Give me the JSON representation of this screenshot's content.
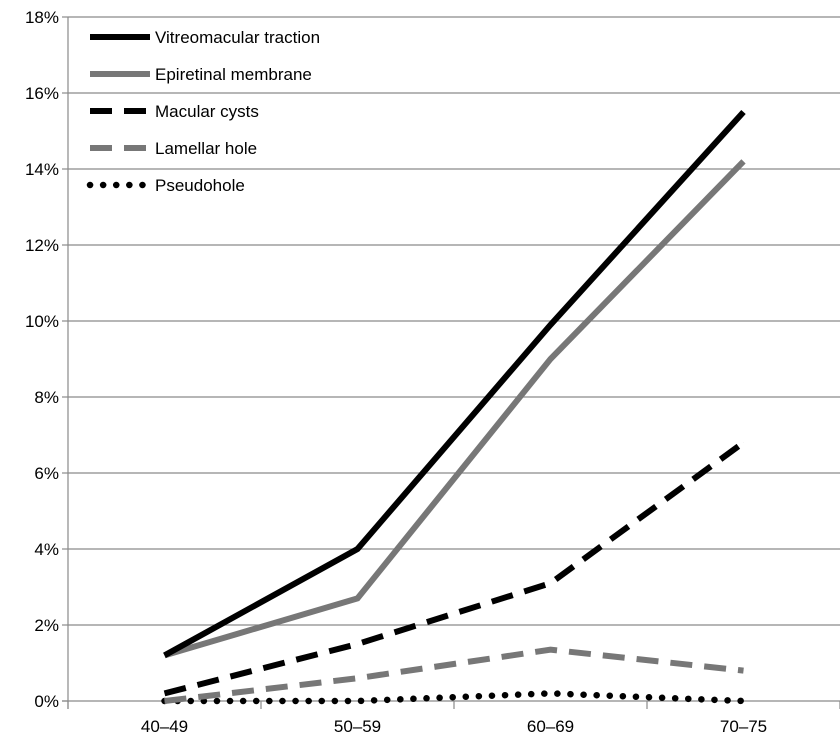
{
  "chart_data": {
    "type": "line",
    "title": "",
    "xlabel": "",
    "ylabel": "",
    "categories": [
      "40–49",
      "50–59",
      "60–69",
      "70–75"
    ],
    "ylim": [
      0,
      18
    ],
    "yticks": [
      0,
      2,
      4,
      6,
      8,
      10,
      12,
      14,
      16,
      18
    ],
    "ytick_labels": [
      "0%",
      "2%",
      "4%",
      "6%",
      "8%",
      "10%",
      "12%",
      "14%",
      "16%",
      "18%"
    ],
    "grid": "horizontal",
    "legend_position": "top-left",
    "series": [
      {
        "name": "Vitreomacular traction",
        "values": [
          1.2,
          4.0,
          9.9,
          15.5
        ],
        "color": "#000000",
        "style": "solid"
      },
      {
        "name": "Epiretinal membrane",
        "values": [
          1.2,
          2.7,
          9.0,
          14.2
        ],
        "color": "#777777",
        "style": "solid"
      },
      {
        "name": "Macular cysts",
        "values": [
          0.2,
          1.5,
          3.1,
          6.8
        ],
        "color": "#000000",
        "style": "dashed"
      },
      {
        "name": "Lamellar hole",
        "values": [
          0.0,
          0.6,
          1.35,
          0.8
        ],
        "color": "#777777",
        "style": "dashed"
      },
      {
        "name": "Pseudohole",
        "values": [
          0.0,
          0.0,
          0.2,
          0.0
        ],
        "color": "#000000",
        "style": "dotted"
      }
    ]
  }
}
